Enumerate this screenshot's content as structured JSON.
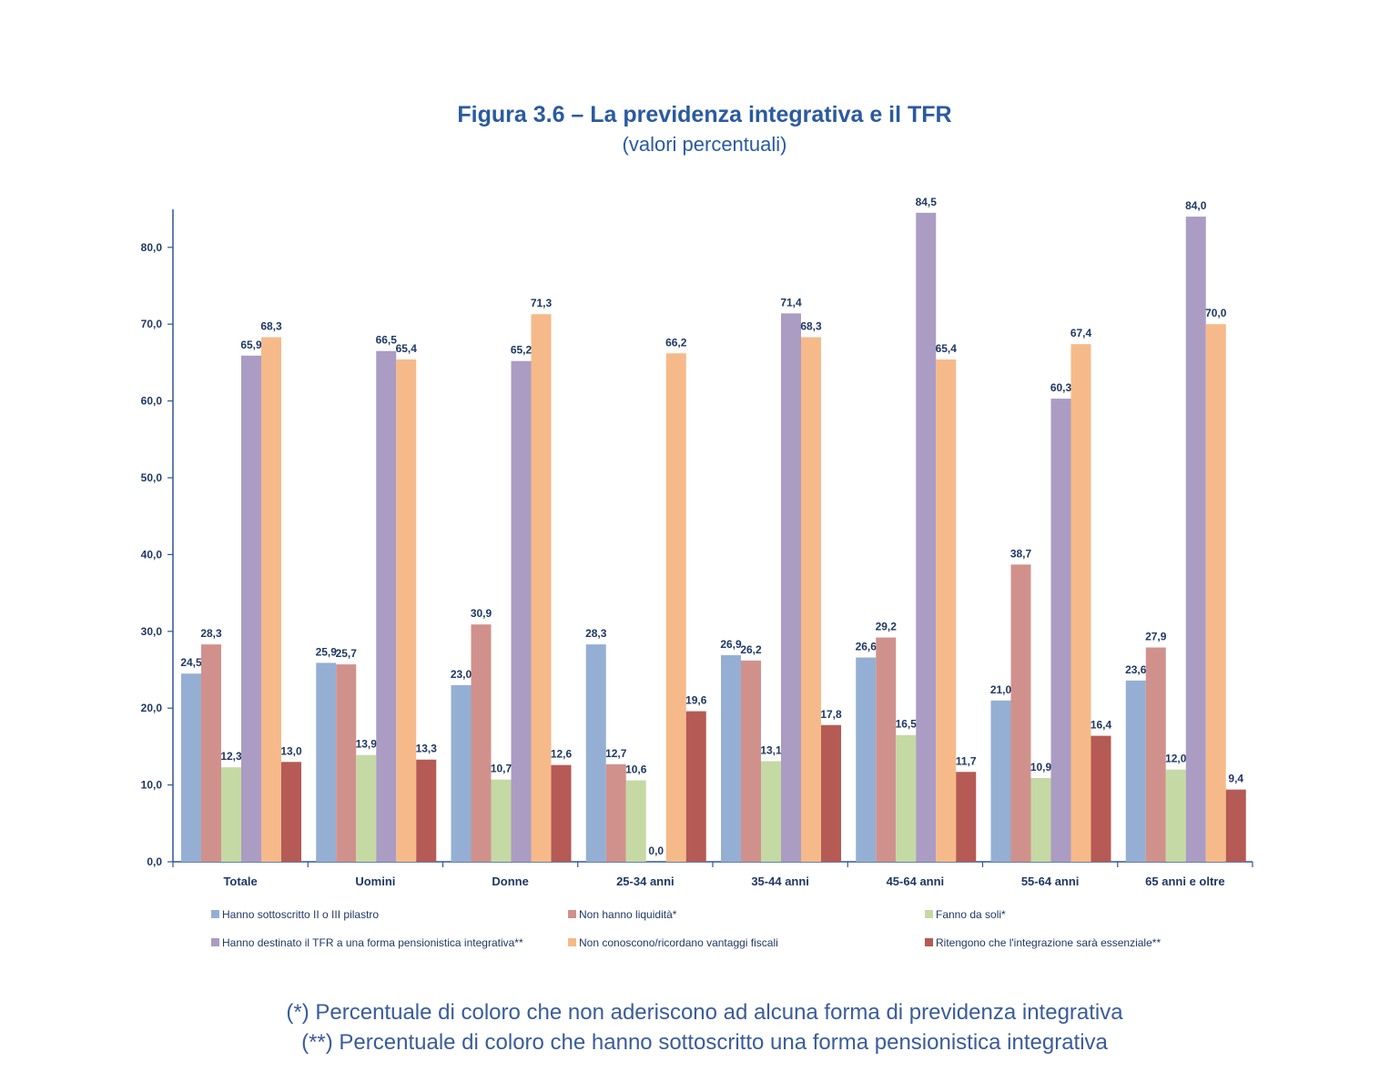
{
  "chart_data": {
    "type": "bar",
    "title": "Figura 3.6 – La previdenza integrativa e il TFR",
    "subtitle": "(valori percentuali)",
    "categories": [
      "Totale",
      "Uomini",
      "Donne",
      "25-34 anni",
      "35-44 anni",
      "45-64 anni",
      "55-64 anni",
      "65 anni e oltre"
    ],
    "ylim": [
      0,
      85
    ],
    "yticks": [
      0,
      10,
      20,
      30,
      40,
      50,
      60,
      70,
      80
    ],
    "ytick_labels": [
      "0,0",
      "10,0",
      "20,0",
      "30,0",
      "40,0",
      "50,0",
      "60,0",
      "70,0",
      "80,0"
    ],
    "series": [
      {
        "name": "Hanno sottoscritto II o III pilastro",
        "color": "#94afd3",
        "values": [
          24.5,
          25.9,
          23.0,
          28.3,
          26.9,
          26.6,
          21.0,
          23.6
        ],
        "labels": [
          "24,5",
          "25,9",
          "23,0",
          "28,3",
          "26,9",
          "26,6",
          "21,0",
          "23,6"
        ]
      },
      {
        "name": "Non hanno liquidità*",
        "color": "#d0918c",
        "values": [
          28.3,
          25.7,
          30.9,
          12.7,
          26.2,
          29.2,
          38.7,
          27.9
        ],
        "labels": [
          "28,3",
          "25,7",
          "30,9",
          "12,7",
          "26,2",
          "29,2",
          "38,7",
          "27,9"
        ]
      },
      {
        "name": "Fanno da soli*",
        "color": "#c5d9a4",
        "values": [
          12.3,
          13.9,
          10.7,
          10.6,
          13.1,
          16.5,
          10.9,
          12.0
        ],
        "labels": [
          "12,3",
          "13,9",
          "10,7",
          "10,6",
          "13,1",
          "16,5",
          "10,9",
          "12,0"
        ]
      },
      {
        "name": "Hanno destinato il TFR a una forma pensionistica integrativa**",
        "color": "#ab9cc3",
        "values": [
          65.9,
          66.5,
          65.2,
          0.0,
          71.4,
          84.5,
          60.3,
          84.0
        ],
        "labels": [
          "65,9",
          "66,5",
          "65,2",
          "0,0",
          "71,4",
          "84,5",
          "60,3",
          "84,0"
        ]
      },
      {
        "name": "Non conoscono/ricordano vantaggi fiscali",
        "color": "#f6ba8a",
        "values": [
          68.3,
          65.4,
          71.3,
          66.2,
          68.3,
          65.4,
          67.4,
          70.0
        ],
        "labels": [
          "68,3",
          "65,4",
          "71,3",
          "66,2",
          "68,3",
          "65,4",
          "67,4",
          "70,0"
        ]
      },
      {
        "name": "Ritengono che l'integrazione sarà essenziale**",
        "color": "#b55a55",
        "values": [
          13.0,
          13.3,
          12.6,
          19.6,
          17.8,
          11.7,
          16.4,
          9.4
        ],
        "labels": [
          "13,0",
          "13,3",
          "12,6",
          "19,6",
          "17,8",
          "11,7",
          "16,4",
          "9,4"
        ]
      }
    ],
    "legend_position": "bottom"
  },
  "footnotes": {
    "note1": "(*) Percentuale di coloro che non aderiscono ad alcuna forma di previdenza integrativa",
    "note2": "(**) Percentuale di coloro che hanno sottoscritto una forma pensionistica integrativa"
  },
  "colors": {
    "title": "#2a5aa0",
    "axis": "#2f5597",
    "label": "#1f3864"
  }
}
